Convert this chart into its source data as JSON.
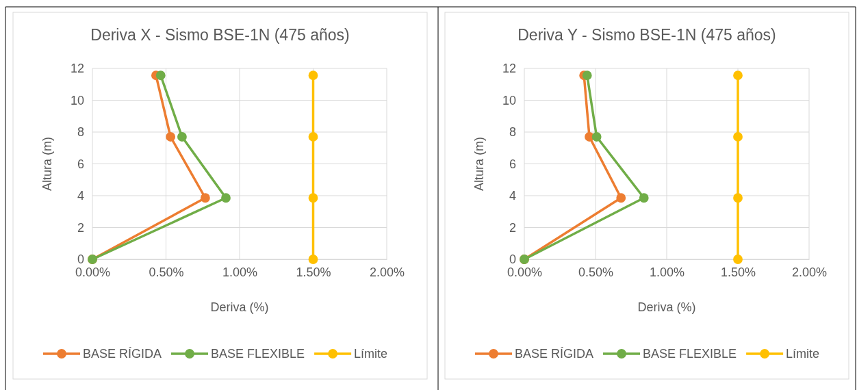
{
  "chart_data": [
    {
      "type": "line",
      "title": "Deriva X - Sismo BSE-1N (475 años)",
      "xlabel": "Deriva (%)",
      "ylabel": "Altura (m)",
      "xlim": [
        0,
        2
      ],
      "xticks": [
        {
          "value": 0,
          "label": "0.00%"
        },
        {
          "value": 0.5,
          "label": "0.50%"
        },
        {
          "value": 1,
          "label": "1.00%"
        },
        {
          "value": 1.5,
          "label": "1.50%"
        },
        {
          "value": 2,
          "label": "2.00%"
        }
      ],
      "ylim": [
        0,
        12
      ],
      "yticks": [
        0,
        2,
        4,
        6,
        8,
        10,
        12
      ],
      "grid": true,
      "legend": "bottom",
      "marker": "circle",
      "line_style": "solid",
      "series": [
        {
          "name": "BASE RÍGIDA",
          "color": "#ed7d31",
          "x": [
            0,
            0.767,
            0.531,
            0.432
          ],
          "values": [
            0,
            3.86,
            7.7,
            11.56
          ]
        },
        {
          "name": "BASE FLEXIBLE",
          "color": "#70ad47",
          "x": [
            0,
            0.907,
            0.609,
            0.464
          ],
          "values": [
            0,
            3.86,
            7.7,
            11.56
          ]
        },
        {
          "name": "Límite",
          "color": "#ffc000",
          "x": [
            1.5,
            1.5,
            1.5,
            1.5
          ],
          "values": [
            0,
            3.86,
            7.7,
            11.56
          ]
        }
      ]
    },
    {
      "type": "line",
      "title": "Deriva Y - Sismo BSE-1N (475 años)",
      "xlabel": "Deriva (%)",
      "ylabel": "Altura (m)",
      "xlim": [
        0,
        2
      ],
      "xticks": [
        {
          "value": 0,
          "label": "0.00%"
        },
        {
          "value": 0.5,
          "label": "0.50%"
        },
        {
          "value": 1,
          "label": "1.00%"
        },
        {
          "value": 1.5,
          "label": "1.50%"
        },
        {
          "value": 2,
          "label": "2.00%"
        }
      ],
      "ylim": [
        0,
        12
      ],
      "yticks": [
        0,
        2,
        4,
        6,
        8,
        10,
        12
      ],
      "grid": true,
      "legend": "bottom",
      "marker": "circle",
      "line_style": "solid",
      "series": [
        {
          "name": "BASE RÍGIDA",
          "color": "#ed7d31",
          "x": [
            0,
            0.679,
            0.457,
            0.419
          ],
          "values": [
            0,
            3.86,
            7.7,
            11.56
          ]
        },
        {
          "name": "BASE FLEXIBLE",
          "color": "#70ad47",
          "x": [
            0,
            0.84,
            0.508,
            0.441
          ],
          "values": [
            0,
            3.86,
            7.7,
            11.56
          ]
        },
        {
          "name": "Límite",
          "color": "#ffc000",
          "x": [
            1.5,
            1.5,
            1.5,
            1.5
          ],
          "values": [
            0,
            3.86,
            7.7,
            11.56
          ]
        }
      ]
    }
  ]
}
